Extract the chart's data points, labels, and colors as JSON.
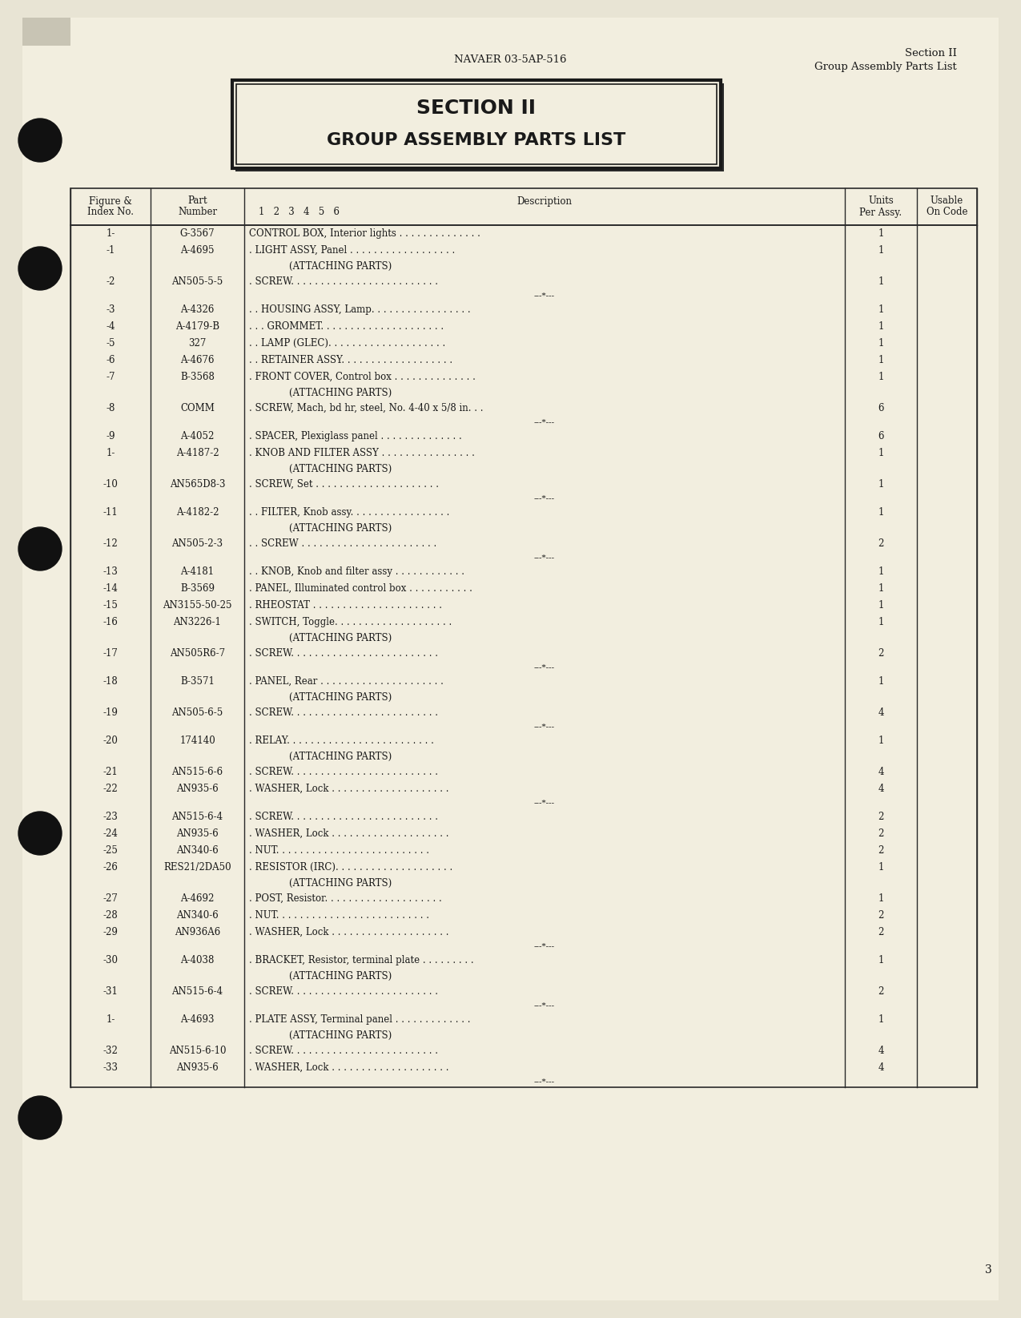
{
  "bg_color": "#e8e4d4",
  "page_color": "#f2eedf",
  "header_center": "NAVAER 03-5AP-516",
  "header_right_line1": "Section II",
  "header_right_line2": "Group Assembly Parts List",
  "section_title_line1": "SECTION II",
  "section_title_line2": "GROUP ASSEMBLY PARTS LIST",
  "page_number": "3",
  "table_rows": [
    {
      "fig": "1-",
      "part": "G-3567",
      "desc": "CONTROL BOX, Interior lights . . . . . . . . . . . . . .",
      "units": "1",
      "sep": false,
      "attaching": false
    },
    {
      "fig": "-1",
      "part": "A-4695",
      "desc": ". LIGHT ASSY, Panel . . . . . . . . . . . . . . . . . .",
      "units": "1",
      "sep": false,
      "attaching": false
    },
    {
      "fig": "",
      "part": "",
      "desc": "(ATTACHING PARTS)",
      "units": "",
      "sep": false,
      "attaching": true
    },
    {
      "fig": "-2",
      "part": "AN505-5-5",
      "desc": ". SCREW. . . . . . . . . . . . . . . . . . . . . . . . .",
      "units": "1",
      "sep": false,
      "attaching": false
    },
    {
      "fig": "",
      "part": "",
      "desc": "---*---",
      "units": "",
      "sep": true,
      "attaching": false
    },
    {
      "fig": "-3",
      "part": "A-4326",
      "desc": ". . HOUSING ASSY, Lamp. . . . . . . . . . . . . . . . .",
      "units": "1",
      "sep": false,
      "attaching": false
    },
    {
      "fig": "-4",
      "part": "A-4179-B",
      "desc": ". . . GROMMET. . . . . . . . . . . . . . . . . . . . .",
      "units": "1",
      "sep": false,
      "attaching": false
    },
    {
      "fig": "-5",
      "part": "327",
      "desc": ". . LAMP (GLEC). . . . . . . . . . . . . . . . . . . .",
      "units": "1",
      "sep": false,
      "attaching": false
    },
    {
      "fig": "-6",
      "part": "A-4676",
      "desc": ". . RETAINER ASSY. . . . . . . . . . . . . . . . . . .",
      "units": "1",
      "sep": false,
      "attaching": false
    },
    {
      "fig": "-7",
      "part": "B-3568",
      "desc": ". FRONT COVER, Control box . . . . . . . . . . . . . .",
      "units": "1",
      "sep": false,
      "attaching": false
    },
    {
      "fig": "",
      "part": "",
      "desc": "(ATTACHING PARTS)",
      "units": "",
      "sep": false,
      "attaching": true
    },
    {
      "fig": "-8",
      "part": "COMM",
      "desc": ". SCREW, Mach, bd hr, steel, No. 4-40 x 5/8 in. . .",
      "units": "6",
      "sep": false,
      "attaching": false
    },
    {
      "fig": "",
      "part": "",
      "desc": "---*---",
      "units": "",
      "sep": true,
      "attaching": false
    },
    {
      "fig": "-9",
      "part": "A-4052",
      "desc": ". SPACER, Plexiglass panel . . . . . . . . . . . . . .",
      "units": "6",
      "sep": false,
      "attaching": false
    },
    {
      "fig": "1-",
      "part": "A-4187-2",
      "desc": ". KNOB AND FILTER ASSY . . . . . . . . . . . . . . . .",
      "units": "1",
      "sep": false,
      "attaching": false
    },
    {
      "fig": "",
      "part": "",
      "desc": "(ATTACHING PARTS)",
      "units": "",
      "sep": false,
      "attaching": true
    },
    {
      "fig": "-10",
      "part": "AN565D8-3",
      "desc": ". SCREW, Set . . . . . . . . . . . . . . . . . . . . .",
      "units": "1",
      "sep": false,
      "attaching": false
    },
    {
      "fig": "",
      "part": "",
      "desc": "---*---",
      "units": "",
      "sep": true,
      "attaching": false
    },
    {
      "fig": "-11",
      "part": "A-4182-2",
      "desc": ". . FILTER, Knob assy. . . . . . . . . . . . . . . . .",
      "units": "1",
      "sep": false,
      "attaching": false
    },
    {
      "fig": "",
      "part": "",
      "desc": "(ATTACHING PARTS)",
      "units": "",
      "sep": false,
      "attaching": true
    },
    {
      "fig": "-12",
      "part": "AN505-2-3",
      "desc": ". . SCREW . . . . . . . . . . . . . . . . . . . . . . .",
      "units": "2",
      "sep": false,
      "attaching": false
    },
    {
      "fig": "",
      "part": "",
      "desc": "---*---",
      "units": "",
      "sep": true,
      "attaching": false
    },
    {
      "fig": "-13",
      "part": "A-4181",
      "desc": ". . KNOB, Knob and filter assy . . . . . . . . . . . .",
      "units": "1",
      "sep": false,
      "attaching": false
    },
    {
      "fig": "-14",
      "part": "B-3569",
      "desc": ". PANEL, Illuminated control box . . . . . . . . . . .",
      "units": "1",
      "sep": false,
      "attaching": false
    },
    {
      "fig": "-15",
      "part": "AN3155-50-25",
      "desc": ". RHEOSTAT . . . . . . . . . . . . . . . . . . . . . .",
      "units": "1",
      "sep": false,
      "attaching": false
    },
    {
      "fig": "-16",
      "part": "AN3226-1",
      "desc": ". SWITCH, Toggle. . . . . . . . . . . . . . . . . . . .",
      "units": "1",
      "sep": false,
      "attaching": false
    },
    {
      "fig": "",
      "part": "",
      "desc": "(ATTACHING PARTS)",
      "units": "",
      "sep": false,
      "attaching": true
    },
    {
      "fig": "-17",
      "part": "AN505R6-7",
      "desc": ". SCREW. . . . . . . . . . . . . . . . . . . . . . . . .",
      "units": "2",
      "sep": false,
      "attaching": false
    },
    {
      "fig": "",
      "part": "",
      "desc": "---*---",
      "units": "",
      "sep": true,
      "attaching": false
    },
    {
      "fig": "-18",
      "part": "B-3571",
      "desc": ". PANEL, Rear . . . . . . . . . . . . . . . . . . . . .",
      "units": "1",
      "sep": false,
      "attaching": false
    },
    {
      "fig": "",
      "part": "",
      "desc": "(ATTACHING PARTS)",
      "units": "",
      "sep": false,
      "attaching": true
    },
    {
      "fig": "-19",
      "part": "AN505-6-5",
      "desc": ". SCREW. . . . . . . . . . . . . . . . . . . . . . . . .",
      "units": "4",
      "sep": false,
      "attaching": false
    },
    {
      "fig": "",
      "part": "",
      "desc": "---*---",
      "units": "",
      "sep": true,
      "attaching": false
    },
    {
      "fig": "-20",
      "part": "174140",
      "desc": ". RELAY. . . . . . . . . . . . . . . . . . . . . . . . .",
      "units": "1",
      "sep": false,
      "attaching": false
    },
    {
      "fig": "",
      "part": "",
      "desc": "(ATTACHING PARTS)",
      "units": "",
      "sep": false,
      "attaching": true
    },
    {
      "fig": "-21",
      "part": "AN515-6-6",
      "desc": ". SCREW. . . . . . . . . . . . . . . . . . . . . . . . .",
      "units": "4",
      "sep": false,
      "attaching": false
    },
    {
      "fig": "-22",
      "part": "AN935-6",
      "desc": ". WASHER, Lock . . . . . . . . . . . . . . . . . . . .",
      "units": "4",
      "sep": false,
      "attaching": false
    },
    {
      "fig": "",
      "part": "",
      "desc": "---*---",
      "units": "",
      "sep": true,
      "attaching": false
    },
    {
      "fig": "-23",
      "part": "AN515-6-4",
      "desc": ". SCREW. . . . . . . . . . . . . . . . . . . . . . . . .",
      "units": "2",
      "sep": false,
      "attaching": false
    },
    {
      "fig": "-24",
      "part": "AN935-6",
      "desc": ". WASHER, Lock . . . . . . . . . . . . . . . . . . . .",
      "units": "2",
      "sep": false,
      "attaching": false
    },
    {
      "fig": "-25",
      "part": "AN340-6",
      "desc": ". NUT. . . . . . . . . . . . . . . . . . . . . . . . . .",
      "units": "2",
      "sep": false,
      "attaching": false
    },
    {
      "fig": "-26",
      "part": "RES21/2DA50",
      "desc": ". RESISTOR (IRC). . . . . . . . . . . . . . . . . . . .",
      "units": "1",
      "sep": false,
      "attaching": false
    },
    {
      "fig": "",
      "part": "",
      "desc": "(ATTACHING PARTS)",
      "units": "",
      "sep": false,
      "attaching": true
    },
    {
      "fig": "-27",
      "part": "A-4692",
      "desc": ". POST, Resistor. . . . . . . . . . . . . . . . . . . .",
      "units": "1",
      "sep": false,
      "attaching": false
    },
    {
      "fig": "-28",
      "part": "AN340-6",
      "desc": ". NUT. . . . . . . . . . . . . . . . . . . . . . . . . .",
      "units": "2",
      "sep": false,
      "attaching": false
    },
    {
      "fig": "-29",
      "part": "AN936A6",
      "desc": ". WASHER, Lock . . . . . . . . . . . . . . . . . . . .",
      "units": "2",
      "sep": false,
      "attaching": false
    },
    {
      "fig": "",
      "part": "",
      "desc": "---*---",
      "units": "",
      "sep": true,
      "attaching": false
    },
    {
      "fig": "-30",
      "part": "A-4038",
      "desc": ". BRACKET, Resistor, terminal plate . . . . . . . . .",
      "units": "1",
      "sep": false,
      "attaching": false
    },
    {
      "fig": "",
      "part": "",
      "desc": "(ATTACHING PARTS)",
      "units": "",
      "sep": false,
      "attaching": true
    },
    {
      "fig": "-31",
      "part": "AN515-6-4",
      "desc": ". SCREW. . . . . . . . . . . . . . . . . . . . . . . . .",
      "units": "2",
      "sep": false,
      "attaching": false
    },
    {
      "fig": "",
      "part": "",
      "desc": "---*---",
      "units": "",
      "sep": true,
      "attaching": false
    },
    {
      "fig": "1-",
      "part": "A-4693",
      "desc": ". PLATE ASSY, Terminal panel . . . . . . . . . . . . .",
      "units": "1",
      "sep": false,
      "attaching": false
    },
    {
      "fig": "",
      "part": "",
      "desc": "(ATTACHING PARTS)",
      "units": "",
      "sep": false,
      "attaching": true
    },
    {
      "fig": "-32",
      "part": "AN515-6-10",
      "desc": ". SCREW. . . . . . . . . . . . . . . . . . . . . . . . .",
      "units": "4",
      "sep": false,
      "attaching": false
    },
    {
      "fig": "-33",
      "part": "AN935-6",
      "desc": ". WASHER, Lock . . . . . . . . . . . . . . . . . . . .",
      "units": "4",
      "sep": false,
      "attaching": false
    },
    {
      "fig": "",
      "part": "",
      "desc": "---*---",
      "units": "",
      "sep": true,
      "attaching": false
    }
  ]
}
